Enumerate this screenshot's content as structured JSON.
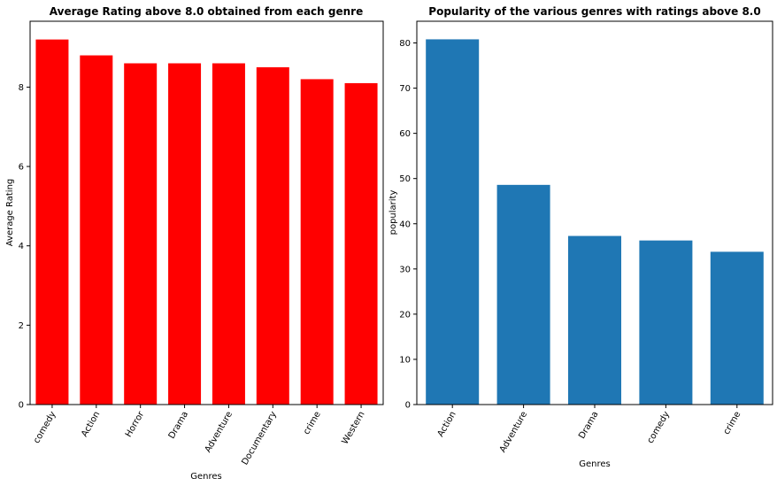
{
  "chart_data": [
    {
      "type": "bar",
      "title": "Average Rating above 8.0 obtained from each genre",
      "xlabel": "Genres",
      "ylabel": "Average Rating",
      "categories": [
        "comedy",
        "Action",
        "Horror",
        "Drama",
        "Adventure",
        "Documentary",
        "crime",
        "Western"
      ],
      "values": [
        9.2,
        8.8,
        8.6,
        8.6,
        8.6,
        8.5,
        8.2,
        8.1
      ],
      "ylim": [
        0,
        9.66
      ],
      "yticks": [
        0,
        2,
        4,
        6,
        8
      ],
      "color": "#ff0000",
      "grid": false
    },
    {
      "type": "bar",
      "title": "Popularity of the various genres with ratings above 8.0",
      "xlabel": "Genres",
      "ylabel": "popularity",
      "categories": [
        "Action",
        "Adventure",
        "Drama",
        "comedy",
        "crime"
      ],
      "values": [
        80.8,
        48.6,
        37.3,
        36.3,
        33.8
      ],
      "ylim": [
        0,
        84.8
      ],
      "yticks": [
        0,
        10,
        20,
        30,
        40,
        50,
        60,
        70,
        80
      ],
      "color": "#1f77b4",
      "grid": false
    }
  ]
}
